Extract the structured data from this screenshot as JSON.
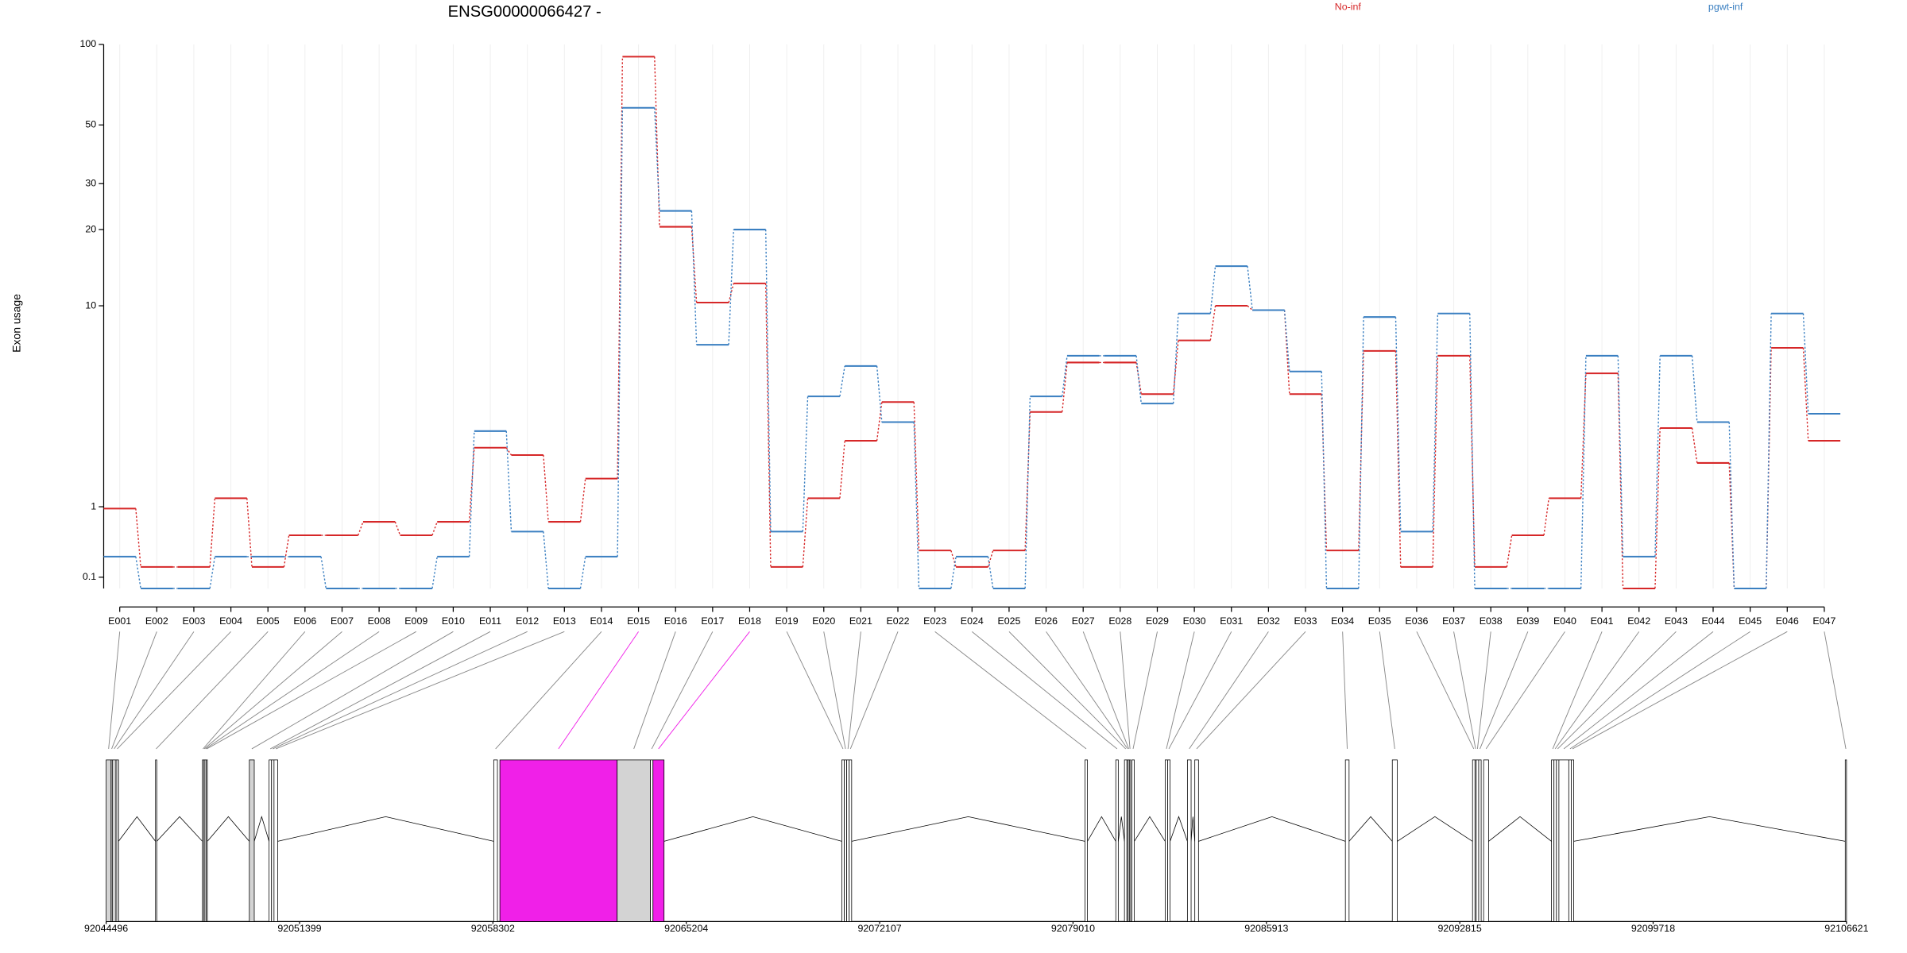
{
  "chart_data": {
    "type": "step",
    "title": "ENSG00000066427 -",
    "ylabel": "Exon usage",
    "yscale": "log1p",
    "ylim": [
      0,
      100
    ],
    "yticks": [
      0.1,
      1,
      10,
      20,
      30,
      50,
      100
    ],
    "grid": true,
    "categories": [
      "E001",
      "E002",
      "E003",
      "E004",
      "E005",
      "E006",
      "E007",
      "E008",
      "E009",
      "E010",
      "E011",
      "E012",
      "E013",
      "E014",
      "E015",
      "E016",
      "E017",
      "E018",
      "E019",
      "E020",
      "E021",
      "E022",
      "E023",
      "E024",
      "E025",
      "E026",
      "E027",
      "E028",
      "E029",
      "E030",
      "E031",
      "E032",
      "E033",
      "E034",
      "E035",
      "E036",
      "E037",
      "E038",
      "E039",
      "E040",
      "E041",
      "E042",
      "E043",
      "E044",
      "E045",
      "E046",
      "E047"
    ],
    "series": [
      {
        "name": "No-inf",
        "color": "#d62728",
        "values": [
          0.97,
          0.2,
          0.2,
          1.15,
          0.2,
          0.57,
          0.57,
          0.76,
          0.57,
          0.76,
          2.3,
          2.1,
          0.76,
          1.54,
          90,
          20.5,
          10.3,
          12.3,
          0.2,
          1.15,
          2.5,
          3.86,
          0.38,
          0.2,
          0.38,
          3.47,
          5.8,
          5.8,
          4.2,
          7.2,
          10,
          9.6,
          4.2,
          0.38,
          6.5,
          0.2,
          6.2,
          0.2,
          0.57,
          1.15,
          5.2,
          0,
          2.9,
          1.9,
          0,
          6.7,
          2.5
        ]
      },
      {
        "name": "pgwt-inf",
        "color": "#3a7fc1",
        "values": [
          0.31,
          0,
          0,
          0.31,
          0.31,
          0.31,
          0,
          0,
          0,
          0.31,
          2.8,
          0.62,
          0,
          0.31,
          58,
          23.6,
          6.9,
          20,
          0.62,
          4.1,
          5.6,
          3.1,
          0,
          0.31,
          0,
          4.1,
          6.2,
          6.2,
          3.8,
          9.3,
          14.4,
          9.6,
          5.3,
          0,
          9,
          0.62,
          9.3,
          0,
          0,
          0,
          6.2,
          0.31,
          6.2,
          3.1,
          0,
          9.3,
          3.4
        ]
      }
    ],
    "gene_model": {
      "xlim": [
        92044496,
        92106621
      ],
      "xticks": [
        92044496,
        92051399,
        92058302,
        92065204,
        92072107,
        92079010,
        92085913,
        92092815,
        92099718,
        92106621
      ],
      "exon_start": [
        92044496,
        92044672,
        92044716,
        92044848,
        92046258,
        92047933,
        92047977,
        92048021,
        92048065,
        92049607,
        92050312,
        92050400,
        92050488,
        92058331,
        92058551,
        92062737,
        92063926,
        92064015,
        92070756,
        92070844,
        92070932,
        92071020,
        92079436,
        92080537,
        92080846,
        92080934,
        92080978,
        92081022,
        92081110,
        92082299,
        92082387,
        92083093,
        92083357,
        92088732,
        92090407,
        92093271,
        92093359,
        92093403,
        92093491,
        92093667,
        92096090,
        92096178,
        92096266,
        92096354,
        92096707,
        92096795,
        92106576
      ],
      "exon_end": [
        92044672,
        92044716,
        92044848,
        92044937,
        92046302,
        92047977,
        92048021,
        92048065,
        92048109,
        92049783,
        92050400,
        92050488,
        92050620,
        92058463,
        92062737,
        92063926,
        92064015,
        92064411,
        92070844,
        92070932,
        92071020,
        92071108,
        92079524,
        92080625,
        92080934,
        92080978,
        92081022,
        92081066,
        92081198,
        92082387,
        92082475,
        92083225,
        92083489,
        92088864,
        92090583,
        92093359,
        92093403,
        92093491,
        92093579,
        92093843,
        92096178,
        92096266,
        92096354,
        92096707,
        92096795,
        92096883,
        92106621
      ],
      "exon_colors": [
        "#d3d3d3",
        "#d3d3d3",
        "#d3d3d3",
        "#d3d3d3",
        "#ffffff",
        "#ffffff",
        "#ffffff",
        "#ffffff",
        "#ffffff",
        "#d3d3d3",
        "#ffffff",
        "#ffffff",
        "#ffffff",
        "#ffffff",
        "#f020e8",
        "#d3d3d3",
        "#ffffff",
        "#f020e8",
        "#ffffff",
        "#ffffff",
        "#ffffff",
        "#ffffff",
        "#ffffff",
        "#ffffff",
        "#ffffff",
        "#ffffff",
        "#ffffff",
        "#ffffff",
        "#ffffff",
        "#ffffff",
        "#ffffff",
        "#ffffff",
        "#ffffff",
        "#ffffff",
        "#ffffff",
        "#ffffff",
        "#ffffff",
        "#ffffff",
        "#ffffff",
        "#ffffff",
        "#ffffff",
        "#ffffff",
        "#ffffff",
        "#ffffff",
        "#ffffff",
        "#ffffff",
        "#ffffff"
      ]
    }
  }
}
